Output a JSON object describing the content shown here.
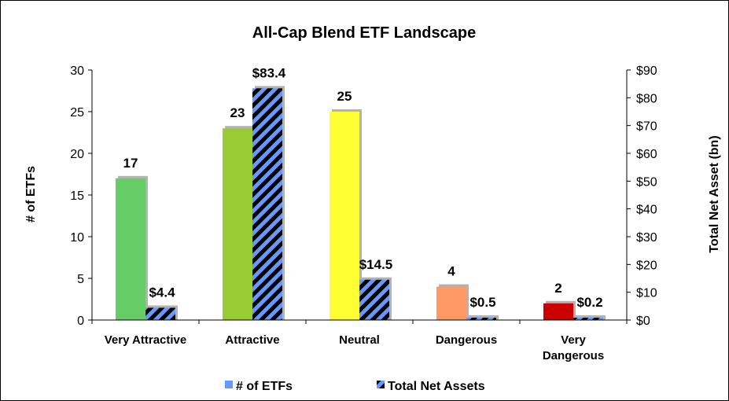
{
  "chart_data": {
    "type": "bar",
    "title": "All-Cap Blend ETF Landscape",
    "categories": [
      [
        "Very Attractive"
      ],
      [
        "Attractive"
      ],
      [
        "Neutral"
      ],
      [
        "Dangerous"
      ],
      [
        "Very",
        "Dangerous"
      ]
    ],
    "ylabel_left": "# of ETFs",
    "ylabel_right": "Total Net Asset (bn)",
    "ylim_left": [
      0,
      30
    ],
    "ylim_right": [
      0,
      90
    ],
    "left_ticks": [
      "0",
      "5",
      "10",
      "15",
      "20",
      "25",
      "30"
    ],
    "right_ticks": [
      "$0",
      "$10",
      "$20",
      "$30",
      "$40",
      "$50",
      "$60",
      "$70",
      "$80",
      "$90"
    ],
    "grid": false,
    "legend_position": "bottom",
    "series": [
      {
        "name": "# of ETFs",
        "axis": "left",
        "values": [
          17,
          23,
          25,
          4,
          2
        ],
        "labels": [
          "17",
          "23",
          "25",
          "4",
          "2"
        ],
        "colors": [
          "#66cc66",
          "#99cc33",
          "#ffff33",
          "#ff9966",
          "#cc0000"
        ],
        "legend_color": "#6699ff"
      },
      {
        "name": "Total Net Assets",
        "axis": "right",
        "values": [
          4.4,
          83.4,
          14.5,
          0.5,
          0.2
        ],
        "labels": [
          "$4.4",
          "$83.4",
          "$14.5",
          "$0.5",
          "$0.2"
        ],
        "pattern": "diagonal-stripes",
        "colors": [
          "#6699ff",
          "#000000"
        ]
      }
    ]
  }
}
